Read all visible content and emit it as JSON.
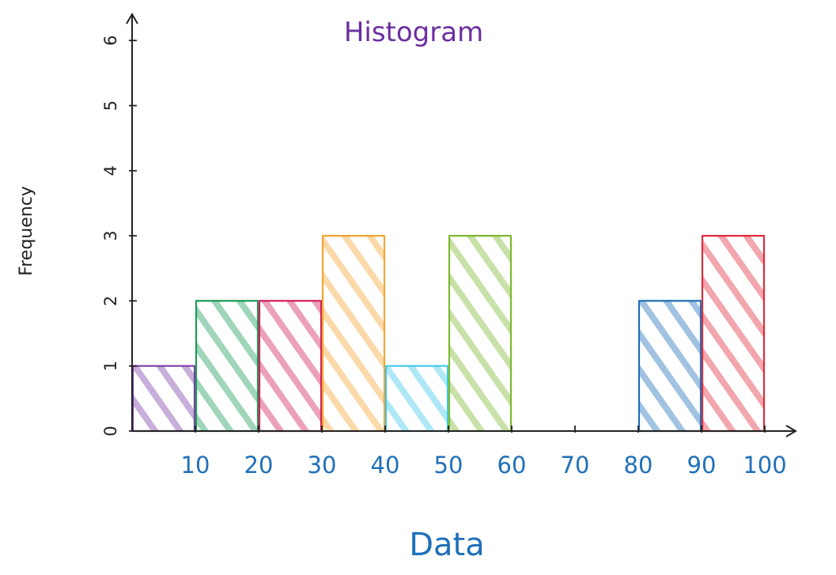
{
  "colors": {
    "title": "#6b2fa0",
    "xlabel": "#1f6fb8",
    "ticks_x": "#1f6fb8",
    "axis": "#222222"
  },
  "chart_data": {
    "type": "bar",
    "title": "Histogram",
    "xlabel": "Data",
    "ylabel": "Frequency",
    "xlim": [
      0,
      100
    ],
    "ylim": [
      0,
      6
    ],
    "xticks": [
      10,
      20,
      30,
      40,
      50,
      60,
      70,
      80,
      90,
      100
    ],
    "yticks": [
      0,
      1,
      2,
      3,
      4,
      5,
      6
    ],
    "grid": false,
    "bins": [
      {
        "start": 0,
        "end": 10,
        "count": 1,
        "color": "#7b3fa6"
      },
      {
        "start": 10,
        "end": 20,
        "count": 2,
        "color": "#1a9a55"
      },
      {
        "start": 20,
        "end": 30,
        "count": 2,
        "color": "#d11f5e"
      },
      {
        "start": 30,
        "end": 40,
        "count": 3,
        "color": "#f5a431"
      },
      {
        "start": 40,
        "end": 50,
        "count": 1,
        "color": "#3ec8ea"
      },
      {
        "start": 50,
        "end": 60,
        "count": 3,
        "color": "#7cb82f"
      },
      {
        "start": 60,
        "end": 70,
        "count": 0,
        "color": "#999999"
      },
      {
        "start": 70,
        "end": 80,
        "count": 0,
        "color": "#999999"
      },
      {
        "start": 80,
        "end": 90,
        "count": 2,
        "color": "#1f6fb8"
      },
      {
        "start": 90,
        "end": 100,
        "count": 3,
        "color": "#e02c3c"
      }
    ]
  }
}
